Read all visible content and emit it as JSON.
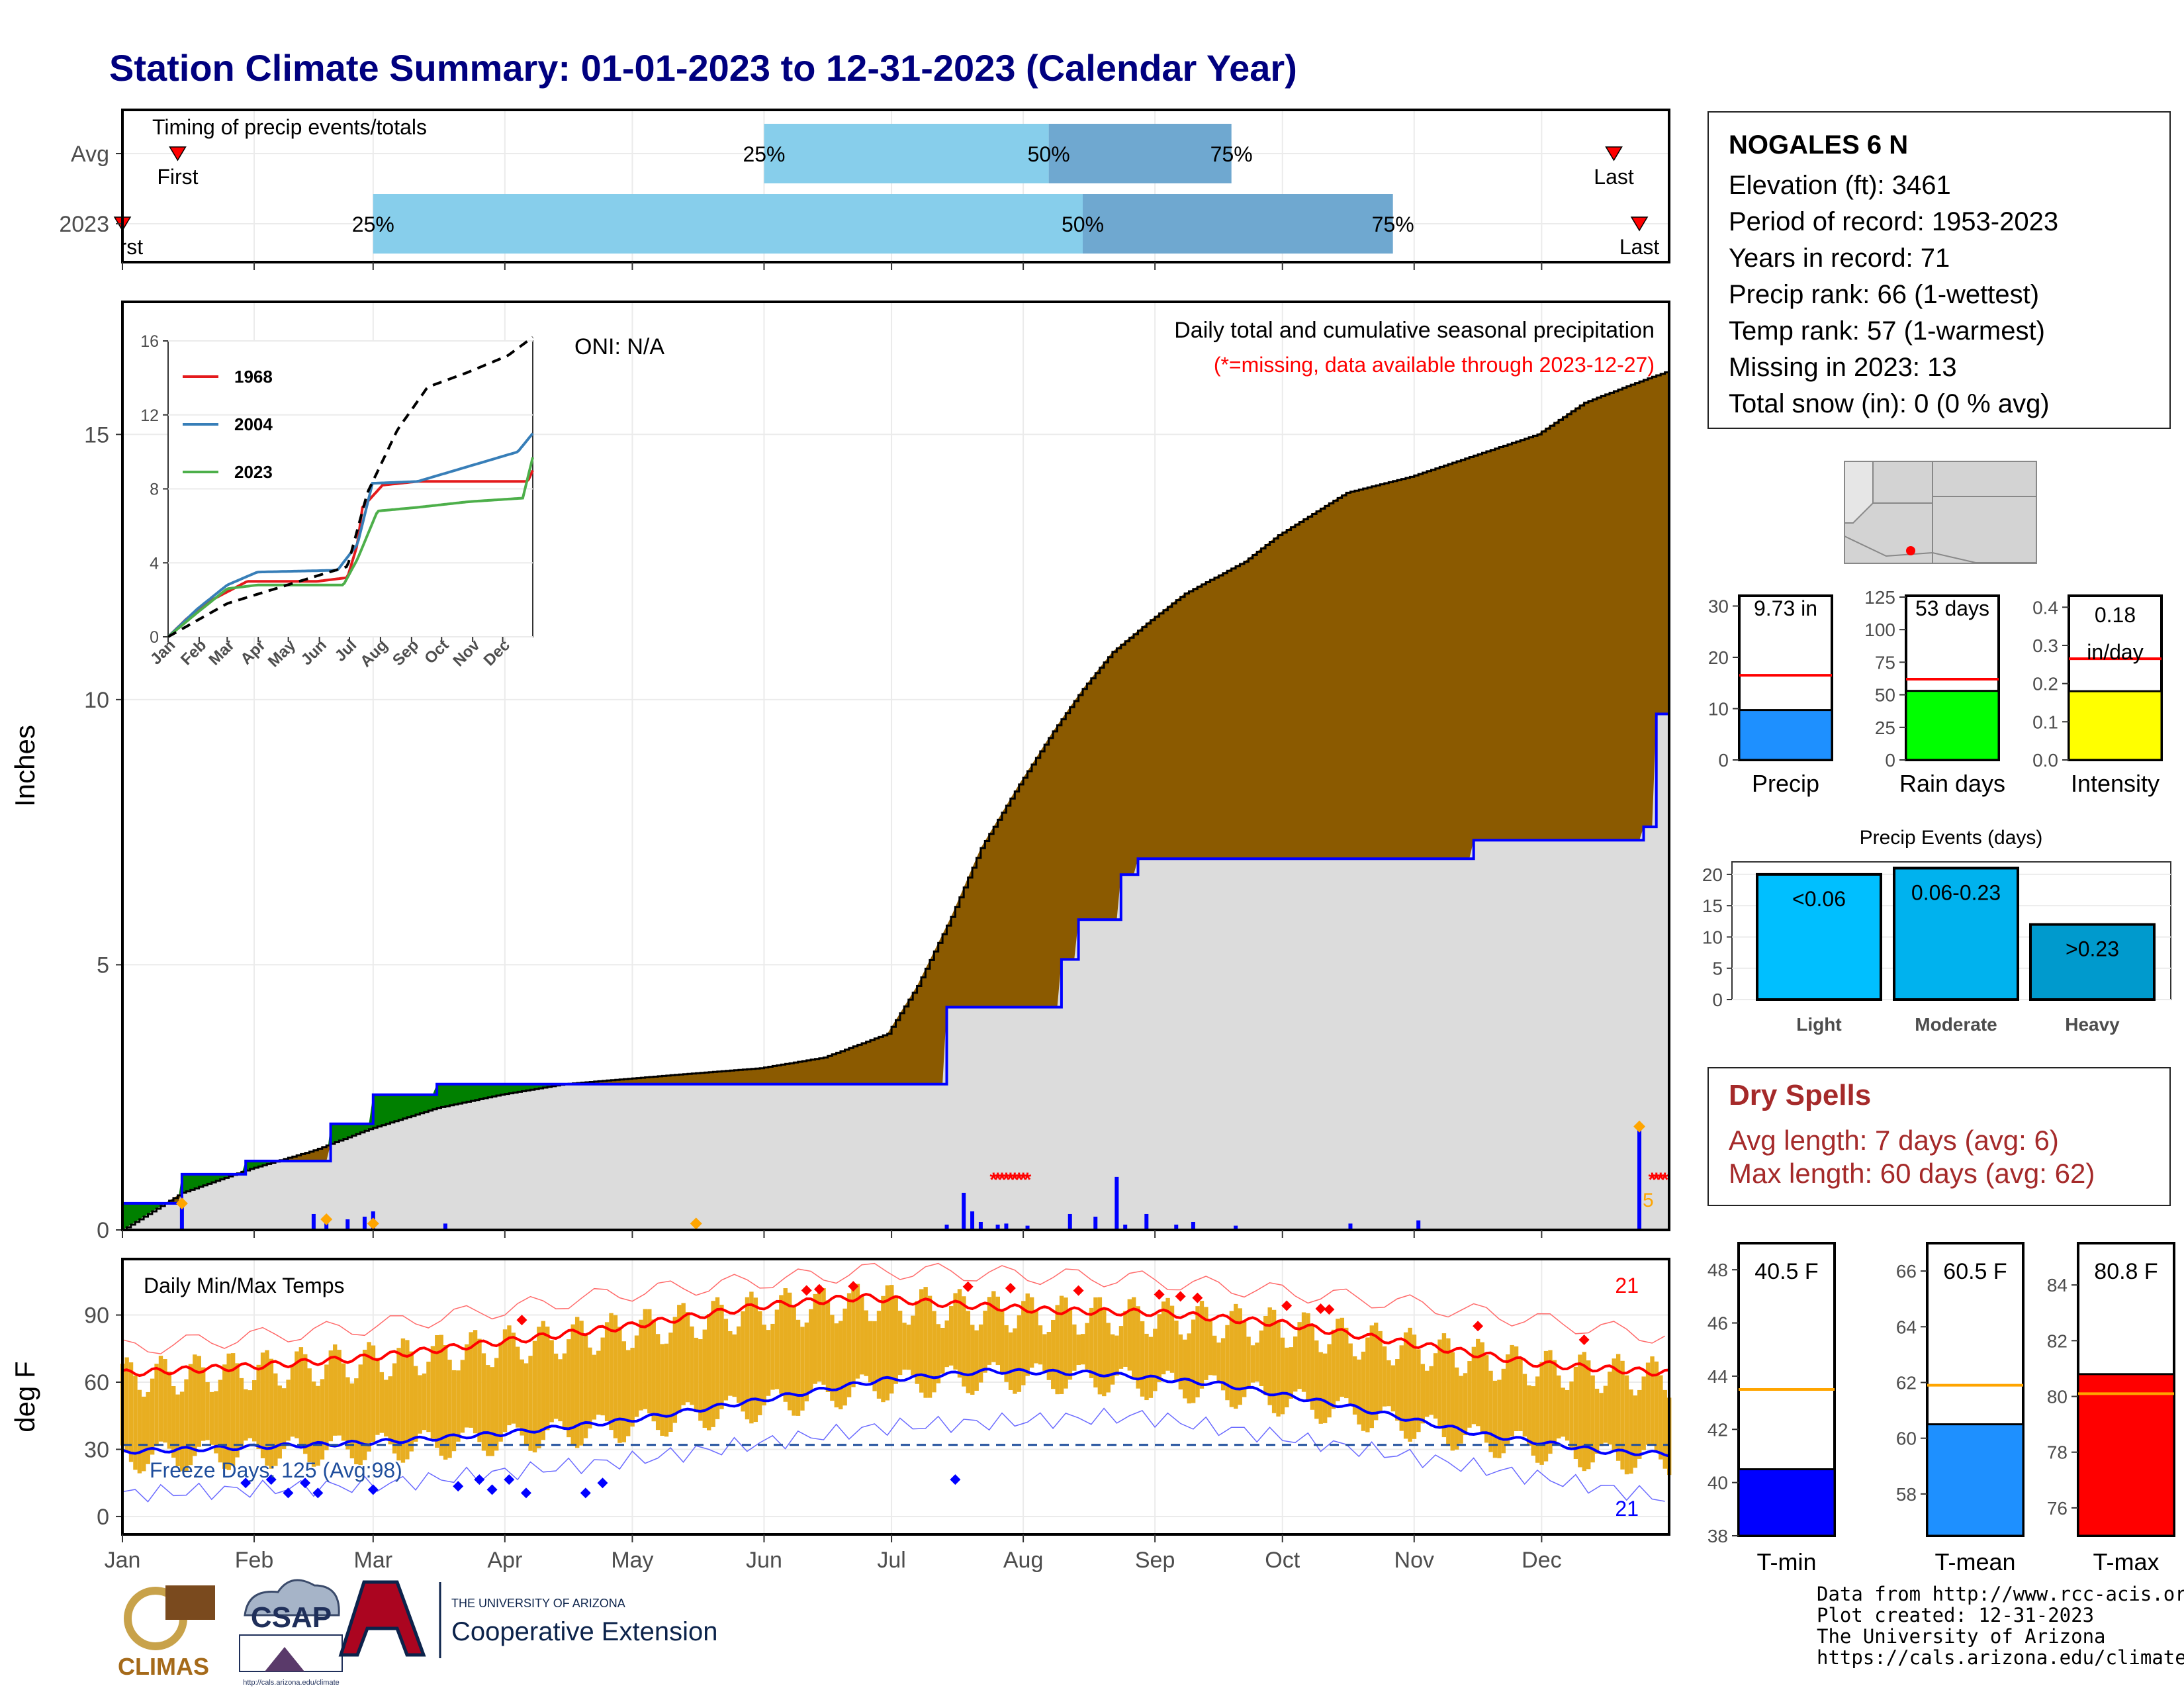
{
  "title": "Station Climate Summary: 01-01-2023 to 12-31-2023 (Calendar Year)",
  "timing_panel": {
    "title": "Timing of precip events/totals",
    "rows": [
      {
        "label": "Avg",
        "first_label": "First",
        "last_label": "Last",
        "first_doy": 14,
        "last_doy": 352,
        "p25": 152,
        "p50": 219,
        "p75": 262,
        "p25_label": "25%",
        "p50_label": "50%",
        "p75_label": "75%"
      },
      {
        "label": "2023",
        "first_label": "First",
        "last_label": "Last",
        "first_doy": 1,
        "last_doy": 358,
        "p25": 60,
        "p50": 227,
        "p75": 300,
        "p25_label": "25%",
        "p50_label": "50%",
        "p75_label": "75%"
      }
    ],
    "colors": {
      "light": "#87ceeb",
      "dark": "#6fa8d0",
      "marker": "#ff0000"
    }
  },
  "precip_panel": {
    "ylabel": "Inches",
    "header": "Daily total and cumulative seasonal precipitation",
    "subheader": "(*=missing, data available through 2023-12-27)",
    "oni_label": "ONI: N/A",
    "yticks": [
      "0",
      "5",
      "10",
      "15"
    ],
    "missing_count_label": "5",
    "colors": {
      "avg_fill": "#8b5a00",
      "year_fill": "#dcdcdc",
      "wetter_fill": "#008000",
      "year_line": "#0000ff",
      "missing": "#ff0000",
      "daily_bars": "#0000ff",
      "extreme": "#ffa500"
    }
  },
  "inset": {
    "legend": [
      {
        "name": "1968",
        "color": "#e41a1c"
      },
      {
        "name": "2004",
        "color": "#377eb8"
      },
      {
        "name": "2023",
        "color": "#4daf4a"
      }
    ],
    "yticks": [
      "0",
      "4",
      "8",
      "12",
      "16"
    ],
    "months": [
      "Jan",
      "Feb",
      "Mar",
      "Apr",
      "May",
      "Jun",
      "Jul",
      "Aug",
      "Sep",
      "Oct",
      "Nov",
      "Dec"
    ]
  },
  "temp_panel": {
    "ylabel": "deg F",
    "header": "Daily Min/Max Temps",
    "freeze_label": "Freeze Days: 125 (Avg:98)",
    "max_count": "21",
    "min_count": "21",
    "yticks": [
      "0",
      "30",
      "60",
      "90"
    ],
    "colors": {
      "bars": "#e8ae21",
      "max_line": "#ff0000",
      "min_line": "#0000ff",
      "freeze_line": "#1f4e9c"
    }
  },
  "months": [
    "Jan",
    "Feb",
    "Mar",
    "Apr",
    "May",
    "Jun",
    "Jul",
    "Aug",
    "Sep",
    "Oct",
    "Nov",
    "Dec"
  ],
  "station": {
    "name": "NOGALES 6 N",
    "lines": [
      "Elevation (ft): 3461",
      "Period of record: 1953-2023",
      "Years in record: 71",
      "Precip rank: 66 (1-wettest)",
      "Temp rank: 57 (1-warmest)",
      "Missing in 2023: 13",
      "Total snow (in): 0 (0 % avg)"
    ]
  },
  "stat_bars": [
    {
      "label": "Precip",
      "value_label": "9.73 in",
      "value": 9.73,
      "avg": 16.5,
      "ymax": 32,
      "yticks": [
        "0",
        "10",
        "20",
        "30"
      ],
      "tickvals": [
        0,
        10,
        20,
        30
      ],
      "color": "#1e90ff"
    },
    {
      "label": "Rain days",
      "value_label": "53 days",
      "value": 53,
      "avg": 62,
      "ymax": 126,
      "yticks": [
        "0",
        "25",
        "50",
        "75",
        "100",
        "125"
      ],
      "tickvals": [
        0,
        25,
        50,
        75,
        100,
        125
      ],
      "color": "#00ff00"
    },
    {
      "label": "Intensity",
      "value_label": "0.18 in/day",
      "value": 0.18,
      "avg": 0.265,
      "ymax": 0.43,
      "yticks": [
        "0.0",
        "0.1",
        "0.2",
        "0.3",
        "0.4"
      ],
      "tickvals": [
        0,
        0.1,
        0.2,
        0.3,
        0.4
      ],
      "color": "#ffff00"
    }
  ],
  "precip_events": {
    "title": "Precip Events (days)",
    "yticks": [
      "0",
      "5",
      "10",
      "15",
      "20"
    ],
    "bars": [
      {
        "category": "Light",
        "label": "<0.06",
        "value": 20,
        "color": "#00bfff"
      },
      {
        "category": "Moderate",
        "label": "0.06-0.23",
        "value": 21,
        "color": "#00b2ee"
      },
      {
        "category": "Heavy",
        "label": ">0.23",
        "value": 12,
        "color": "#009acd"
      }
    ]
  },
  "dry_spells": {
    "title": "Dry Spells",
    "avg_length": "Avg length: 7 days (avg: 6)",
    "max_length": "Max length: 60 days (avg: 62)"
  },
  "temp_bars": [
    {
      "label": "T-min",
      "value_label": "40.5 F",
      "value": 40.5,
      "avg": 43.5,
      "ymin": 38,
      "ymax": 49,
      "yticks": [
        "38",
        "40",
        "42",
        "44",
        "46",
        "48"
      ],
      "tickvals": [
        38,
        40,
        42,
        44,
        46,
        48
      ],
      "color": "#0000ff"
    },
    {
      "label": "T-mean",
      "value_label": "60.5 F",
      "value": 60.5,
      "avg": 61.9,
      "ymin": 56.5,
      "ymax": 67,
      "yticks": [
        "58",
        "60",
        "62",
        "64",
        "66"
      ],
      "tickvals": [
        58,
        60,
        62,
        64,
        66
      ],
      "color": "#1e90ff"
    },
    {
      "label": "T-max",
      "value_label": "80.8 F",
      "value": 80.8,
      "avg": 80.1,
      "ymin": 75,
      "ymax": 85.5,
      "yticks": [
        "76",
        "78",
        "80",
        "82",
        "84"
      ],
      "tickvals": [
        76,
        78,
        80,
        82,
        84
      ],
      "color": "#ff0000"
    }
  ],
  "logos": {
    "climas": "CLIMAS",
    "csap": "CSAP",
    "csap_url": "http://cals.arizona.edu/climate",
    "ua_top": "THE UNIVERSITY OF ARIZONA",
    "ua_main": "Cooperative Extension"
  },
  "credits": [
    "Data from http://www.rcc-acis.org/",
    "Plot created: 12-31-2023",
    "The University of Arizona",
    "https://cals.arizona.edu/climate/"
  ],
  "chart_data": [
    {
      "type": "area",
      "title": "Daily total and cumulative seasonal precipitation",
      "ylabel": "Inches",
      "ylim": [
        0,
        17.5
      ],
      "x_unit": "day of year",
      "avg_cumulative": {
        "x": [
          1,
          15,
          31,
          46,
          59,
          75,
          90,
          105,
          120,
          135,
          151,
          166,
          181,
          188,
          196,
          203,
          212,
          220,
          227,
          234,
          243,
          251,
          258,
          265,
          273,
          281,
          289,
          304,
          319,
          334,
          345,
          358,
          365
        ],
        "y": [
          0,
          0.7,
          1.15,
          1.5,
          1.9,
          2.3,
          2.55,
          2.75,
          2.85,
          2.95,
          3.05,
          3.25,
          3.7,
          4.6,
          5.9,
          7.2,
          8.4,
          9.4,
          10.2,
          10.9,
          11.5,
          12.0,
          12.3,
          12.6,
          13.1,
          13.5,
          13.9,
          14.2,
          14.6,
          15.0,
          15.6,
          16.0,
          16.2
        ]
      },
      "year_cumulative": {
        "x": [
          1,
          15,
          30,
          50,
          60,
          75,
          176,
          195,
          222,
          226,
          236,
          240,
          279,
          319,
          359,
          362,
          365
        ],
        "y": [
          0.5,
          1.05,
          1.3,
          2.0,
          2.55,
          2.75,
          2.75,
          4.2,
          5.1,
          5.85,
          6.7,
          7.0,
          7.0,
          7.35,
          7.6,
          9.73,
          9.73
        ]
      },
      "daily": {
        "x": [
          15,
          46,
          49,
          54,
          58,
          60,
          77,
          195,
          199,
          201,
          203,
          207,
          209,
          214,
          224,
          230,
          235,
          237,
          242,
          249,
          253,
          263,
          290,
          306,
          358
        ],
        "y": [
          0.45,
          0.3,
          0.15,
          0.2,
          0.25,
          0.35,
          0.12,
          0.1,
          0.7,
          0.35,
          0.15,
          0.1,
          0.12,
          0.08,
          0.3,
          0.25,
          1.0,
          0.1,
          0.3,
          0.1,
          0.15,
          0.08,
          0.12,
          0.18,
          1.9
        ]
      },
      "missing_days": [
        206,
        207,
        208,
        209,
        210,
        211,
        212,
        213,
        214,
        361,
        362,
        363,
        364
      ],
      "extreme_days": {
        "x": [
          15,
          49,
          60,
          136,
          358
        ],
        "y": [
          0.5,
          0.2,
          0.12,
          0.12,
          1.95
        ]
      }
    },
    {
      "type": "line",
      "title": "",
      "ylim": [
        0,
        16
      ],
      "series": [
        {
          "name": "1968",
          "x": [
            1,
            20,
            45,
            80,
            150,
            180,
            190,
            195,
            215,
            250,
            300,
            360,
            365
          ],
          "y": [
            0,
            1,
            2,
            3,
            3,
            3.2,
            5,
            7,
            8.2,
            8.4,
            8.4,
            8.4,
            9
          ]
        },
        {
          "name": "2004",
          "x": [
            1,
            30,
            60,
            90,
            170,
            190,
            205,
            250,
            300,
            350,
            365
          ],
          "y": [
            0,
            1.5,
            2.8,
            3.5,
            3.6,
            5,
            8.3,
            8.4,
            9.2,
            10,
            11
          ]
        },
        {
          "name": "2023",
          "x": [
            1,
            30,
            60,
            90,
            176,
            190,
            210,
            250,
            300,
            355,
            365
          ],
          "y": [
            0,
            1.3,
            2.6,
            2.8,
            2.8,
            4.2,
            6.8,
            7.0,
            7.3,
            7.5,
            9.7
          ]
        },
        {
          "name": "",
          "x": [
            1,
            60,
            120,
            180,
            200,
            230,
            260,
            300,
            340,
            365
          ],
          "y": [
            0,
            1.8,
            2.8,
            3.8,
            7.8,
            11.2,
            13.5,
            14.3,
            15.2,
            16.2
          ]
        }
      ]
    },
    {
      "type": "bar",
      "title": "Daily Min/Max Temps",
      "ylabel": "deg F",
      "ylim": [
        -8,
        115
      ],
      "avg_max": {
        "x": [
          1,
          31,
          59,
          90,
          120,
          151,
          175,
          195,
          220,
          245,
          275,
          305,
          335,
          365
        ],
        "y": [
          64,
          67,
          71,
          78,
          85,
          94,
          98,
          95,
          92,
          91,
          86,
          77,
          68,
          64
        ]
      },
      "avg_min": {
        "x": [
          1,
          31,
          59,
          90,
          120,
          151,
          180,
          205,
          230,
          260,
          290,
          320,
          350,
          365
        ],
        "y": [
          29,
          31,
          33,
          37,
          43,
          52,
          61,
          65,
          64,
          59,
          49,
          37,
          29,
          28
        ]
      },
      "record_max": {
        "x": [
          1,
          60,
          120,
          180,
          240,
          300,
          365
        ],
        "y": [
          75,
          85,
          100,
          110,
          106,
          96,
          80
        ]
      },
      "record_min": {
        "x": [
          1,
          60,
          120,
          180,
          240,
          300,
          365
        ],
        "y": [
          10,
          14,
          25,
          40,
          45,
          28,
          8
        ]
      },
      "freeze_line": 32
    }
  ]
}
